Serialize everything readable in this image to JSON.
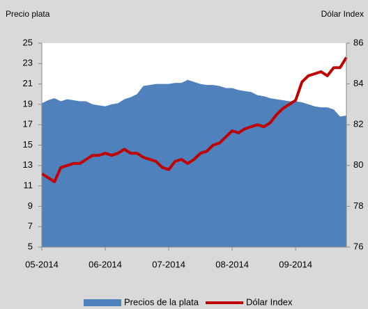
{
  "chart_data": {
    "type": "area-line",
    "ylabel": "Precio plata",
    "y2label": "Dólar Index",
    "categories": [
      "05-2014",
      null,
      null,
      null,
      null,
      null,
      null,
      null,
      null,
      null,
      "06-2014",
      null,
      null,
      null,
      null,
      null,
      null,
      null,
      null,
      null,
      "07-2014",
      null,
      null,
      null,
      null,
      null,
      null,
      null,
      null,
      null,
      "08-2014",
      null,
      null,
      null,
      null,
      null,
      null,
      null,
      null,
      null,
      "09-2014",
      null,
      null,
      null,
      null,
      null,
      null,
      null,
      null
    ],
    "series": [
      {
        "name": "Precios de la plata",
        "color": "#4f81bd",
        "kind": "area",
        "axis": "y",
        "values": [
          19.1,
          19.4,
          19.6,
          19.3,
          19.5,
          19.4,
          19.3,
          19.3,
          19.0,
          18.9,
          18.8,
          19.0,
          19.1,
          19.5,
          19.7,
          20.0,
          20.8,
          20.9,
          21.0,
          21.0,
          21.0,
          21.1,
          21.1,
          21.4,
          21.2,
          21.0,
          20.9,
          20.9,
          20.8,
          20.6,
          20.6,
          20.4,
          20.3,
          20.2,
          19.9,
          19.8,
          19.6,
          19.5,
          19.4,
          19.3,
          19.3,
          19.2,
          19.0,
          18.8,
          18.7,
          18.7,
          18.5,
          17.8,
          17.9
        ]
      },
      {
        "name": "Dólar Index",
        "color": "#c00000",
        "kind": "line",
        "axis": "y2",
        "values": [
          79.6,
          79.4,
          79.2,
          79.9,
          80.0,
          80.1,
          80.1,
          80.3,
          80.5,
          80.5,
          80.6,
          80.5,
          80.6,
          80.8,
          80.6,
          80.6,
          80.4,
          80.3,
          80.2,
          79.9,
          79.8,
          80.2,
          80.3,
          80.1,
          80.3,
          80.6,
          80.7,
          81.0,
          81.1,
          81.4,
          81.7,
          81.6,
          81.8,
          81.9,
          82.0,
          81.9,
          82.1,
          82.5,
          82.8,
          83.0,
          83.2,
          84.1,
          84.4,
          84.5,
          84.6,
          84.4,
          84.8,
          84.8,
          85.3
        ]
      }
    ],
    "ylim": [
      5,
      25
    ],
    "yticks": [
      5,
      7,
      9,
      11,
      13,
      15,
      17,
      19,
      21,
      23,
      25
    ],
    "y2lim": [
      76,
      86
    ],
    "y2ticks": [
      76,
      78,
      80,
      82,
      84,
      86
    ],
    "legend": "bottom"
  }
}
